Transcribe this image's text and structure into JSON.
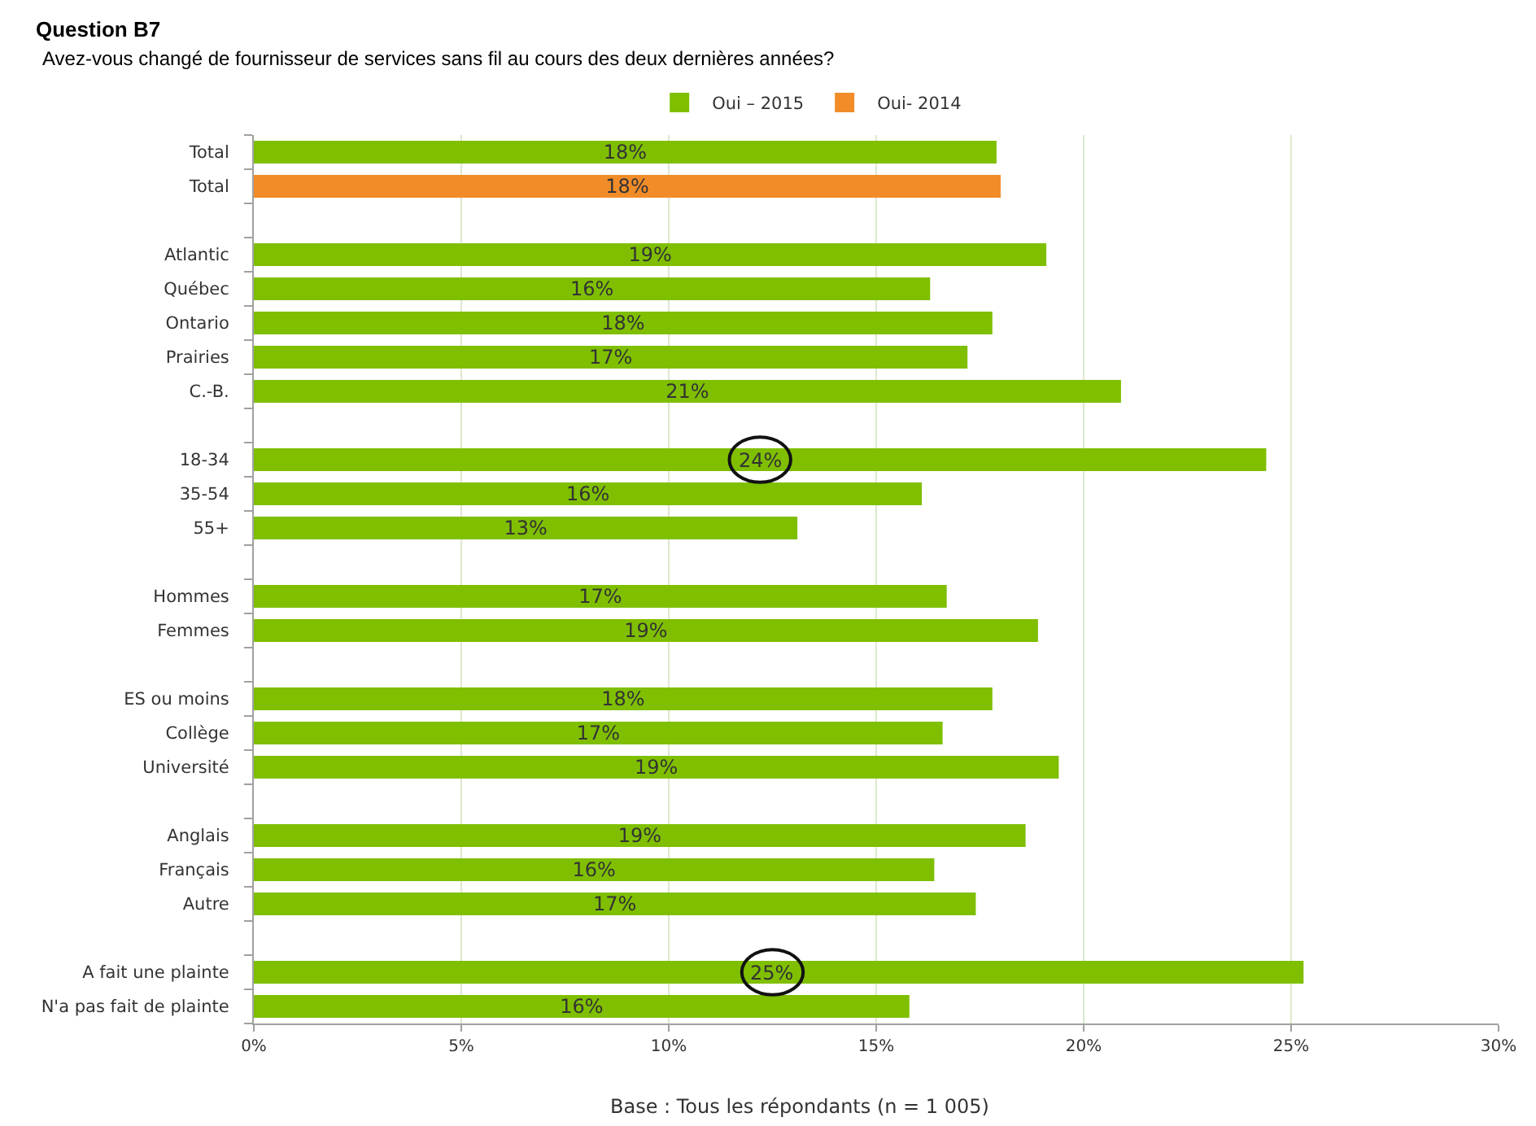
{
  "chart_data": {
    "type": "bar",
    "orientation": "horizontal",
    "title": "Question B7",
    "subtitle": "Avez-vous changé de fournisseur de services sans fil au cours des deux dernières années?",
    "categories": [
      "Total",
      "Total",
      null,
      "Atlantic",
      "Québec",
      "Ontario",
      "Prairies",
      "C.-B.",
      null,
      "18-34",
      "35-54",
      "55+",
      null,
      "Hommes",
      "Femmes",
      null,
      "ES ou moins",
      "Collège",
      "Université",
      null,
      "Anglais",
      "Français",
      "Autre",
      null,
      "A fait une plainte",
      "N'a pas fait de plainte"
    ],
    "series": [
      {
        "name": "Oui – 2015",
        "color": "#7fbf00",
        "values": [
          17.9,
          null,
          null,
          19.1,
          16.3,
          17.8,
          17.2,
          20.9,
          null,
          24.4,
          16.1,
          13.1,
          null,
          16.7,
          18.9,
          null,
          17.8,
          16.6,
          19.4,
          null,
          18.6,
          16.4,
          17.4,
          null,
          25.3,
          15.8
        ],
        "value_labels": [
          "18%",
          null,
          null,
          "19%",
          "16%",
          "18%",
          "17%",
          "21%",
          null,
          null,
          "16%",
          "13%",
          null,
          "17%",
          "19%",
          null,
          "18%",
          "17%",
          "19%",
          null,
          "19%",
          "16%",
          "17%",
          null,
          null,
          "16%"
        ]
      },
      {
        "name": "Oui- 2014",
        "color": "#f28c28",
        "values": [
          null,
          18.0,
          null,
          null,
          null,
          null,
          null,
          null,
          null,
          null,
          null,
          null,
          null,
          null,
          null,
          null,
          null,
          null,
          null,
          null,
          null,
          null,
          null,
          null,
          null,
          null
        ],
        "value_labels": [
          null,
          "18%",
          null,
          null,
          null,
          null,
          null,
          null,
          null,
          null,
          null,
          null,
          null,
          null,
          null,
          null,
          null,
          null,
          null,
          null,
          null,
          null,
          null,
          null,
          null,
          null
        ]
      }
    ],
    "xlim": [
      0,
      30
    ],
    "xticks": [
      {
        "value": 0,
        "label": "0%"
      },
      {
        "value": 5,
        "label": "5%"
      },
      {
        "value": 10,
        "label": "10%"
      },
      {
        "value": 15,
        "label": "15%"
      },
      {
        "value": 20,
        "label": "20%"
      },
      {
        "value": 25,
        "label": "25%"
      },
      {
        "value": 30,
        "label": "30%"
      }
    ],
    "grid": "x",
    "legend": "top",
    "annotations": [
      "Base : Tous les répondants (n = 1 005)",
      {
        "text": "24%",
        "x": 12.2,
        "y": "18-34"
      },
      {
        "text": "25%",
        "x": 12.5,
        "y": "A fait une plainte"
      }
    ]
  }
}
